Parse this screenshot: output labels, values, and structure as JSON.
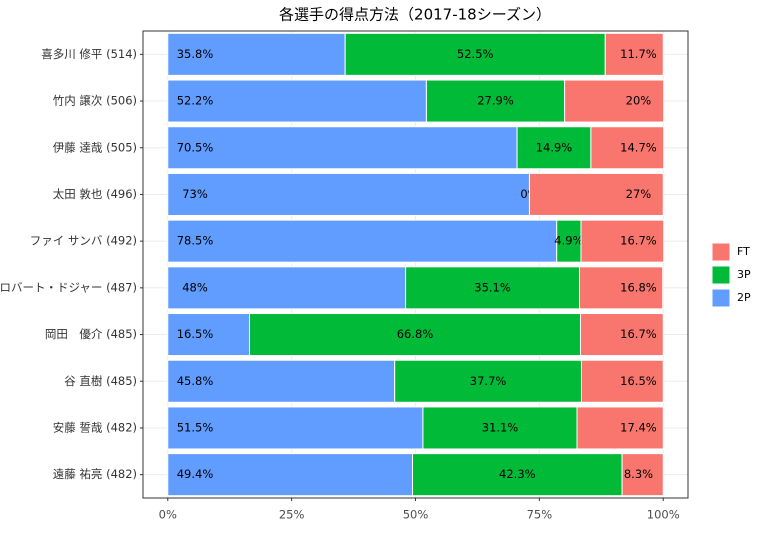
{
  "chart_data": {
    "type": "stacked_bar_horizontal",
    "title": "各選手の得点方法（2017-18シーズン）",
    "categories": [
      "喜多川 修平 (514)",
      "竹内 譲次 (506)",
      "伊藤 達哉 (505)",
      "太田 敦也 (496)",
      "ファイ サンバ (492)",
      "ロバート・ドジャー (487)",
      "岡田　優介 (485)",
      "谷 直樹 (485)",
      "安藤 誓哉 (482)",
      "遠藤 祐亮 (482)"
    ],
    "series": [
      {
        "name": "2P",
        "color": "#619CFF",
        "values": [
          35.8,
          52.2,
          70.5,
          73,
          78.5,
          48,
          16.5,
          45.8,
          51.5,
          49.4
        ],
        "value_labels": [
          "35.8%",
          "52.2%",
          "70.5%",
          "73%",
          "78.5%",
          "48%",
          "16.5%",
          "45.8%",
          "51.5%",
          "49.4%"
        ]
      },
      {
        "name": "3P",
        "color": "#00BA38",
        "values": [
          52.5,
          27.9,
          14.9,
          0,
          4.9,
          35.1,
          66.8,
          37.7,
          31.1,
          42.3
        ],
        "value_labels": [
          "52.5%",
          "27.9%",
          "14.9%",
          "0%",
          "4.9%",
          "35.1%",
          "66.8%",
          "37.7%",
          "31.1%",
          "42.3%"
        ]
      },
      {
        "name": "FT",
        "color": "#F8766D",
        "values": [
          11.7,
          20,
          14.7,
          27,
          16.7,
          16.8,
          16.7,
          16.5,
          17.4,
          8.3
        ],
        "value_labels": [
          "11.7%",
          "20%",
          "14.7%",
          "27%",
          "16.7%",
          "16.8%",
          "16.7%",
          "16.5%",
          "17.4%",
          "8.3%"
        ]
      }
    ],
    "xlim": [
      -5,
      105
    ],
    "xticks": [
      {
        "value": 0,
        "label": "0%"
      },
      {
        "value": 25,
        "label": "25%"
      },
      {
        "value": 50,
        "label": "50%"
      },
      {
        "value": 75,
        "label": "75%"
      },
      {
        "value": 100,
        "label": "100%"
      }
    ],
    "grid": true
  }
}
